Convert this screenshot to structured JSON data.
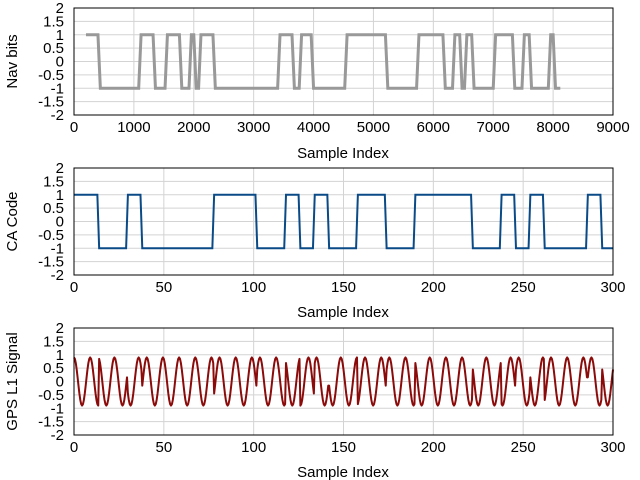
{
  "chart_data": [
    {
      "type": "line",
      "title": "",
      "xlabel": "Sample Index",
      "ylabel": "Nav bits",
      "xlim": [
        0,
        9000
      ],
      "ylim": [
        -2,
        2
      ],
      "xticks": [
        0,
        1000,
        2000,
        3000,
        4000,
        5000,
        6000,
        7000,
        8000,
        9000
      ],
      "xtick_labels": [
        "0",
        "1000",
        "2000",
        "3000",
        "4000",
        "5000",
        "6000",
        "7000",
        "8000",
        "9000"
      ],
      "yticks": [
        -2,
        -1.5,
        -1,
        -0.5,
        0,
        0.5,
        1,
        1.5,
        2
      ],
      "ytick_labels": [
        "-2",
        "-1.5",
        "-1",
        "-0.5",
        "0",
        "0.5",
        "1",
        "1.5",
        "2"
      ],
      "grid": true,
      "series": [
        {
          "color": "#999999",
          "bits": [
            1,
            1,
            1,
            1,
            1,
            1,
            -1,
            -1,
            -1,
            -1,
            -1,
            -1,
            -1,
            -1,
            -1,
            -1,
            -1,
            -1,
            -1,
            -1,
            -1,
            -1,
            -1,
            1,
            1,
            1,
            1,
            1,
            1,
            -1,
            -1,
            -1,
            -1,
            -1,
            1,
            1,
            1,
            1,
            1,
            1,
            -1,
            -1,
            -1,
            -1,
            1,
            1,
            -1,
            -1,
            1,
            1,
            1,
            1,
            1,
            1,
            -1,
            -1,
            -1,
            -1,
            -1,
            -1,
            -1,
            -1,
            -1,
            -1,
            -1,
            -1,
            -1,
            -1,
            -1,
            -1,
            -1,
            -1,
            -1,
            -1,
            -1,
            -1,
            -1,
            -1,
            -1,
            -1,
            -1,
            1,
            1,
            1,
            1,
            1,
            1,
            -1,
            -1,
            -1,
            1,
            1,
            1,
            1,
            1,
            -1,
            -1,
            -1,
            -1,
            -1,
            -1,
            -1,
            -1,
            -1,
            -1,
            -1,
            -1,
            -1,
            -1,
            1,
            1,
            1,
            1,
            1,
            1,
            1,
            1,
            1,
            1,
            1,
            1,
            1,
            1,
            1,
            1,
            1,
            -1,
            -1,
            -1,
            -1,
            -1,
            -1,
            -1,
            -1,
            -1,
            -1,
            -1,
            -1,
            -1,
            1,
            1,
            1,
            1,
            1,
            1,
            1,
            1,
            1,
            1,
            1,
            -1,
            -1,
            -1,
            -1,
            1,
            1,
            1,
            -1,
            -1,
            1,
            1,
            1,
            -1,
            -1,
            -1,
            -1,
            -1,
            -1,
            -1,
            -1,
            -1,
            1,
            1,
            1,
            1,
            1,
            1,
            1,
            1,
            -1,
            -1,
            -1,
            -1,
            1,
            1,
            1,
            -1,
            -1,
            -1,
            -1,
            -1,
            -1,
            -1,
            -1,
            1,
            1,
            -1,
            -1,
            -1
          ]
        }
      ]
    },
    {
      "type": "line",
      "title": "",
      "xlabel": "Sample Index",
      "ylabel": "CA Code",
      "xlim": [
        0,
        300
      ],
      "ylim": [
        -2,
        2
      ],
      "xticks": [
        0,
        50,
        100,
        150,
        200,
        250,
        300
      ],
      "xtick_labels": [
        "0",
        "50",
        "100",
        "150",
        "200",
        "250",
        "300"
      ],
      "yticks": [
        -2,
        -1.5,
        -1,
        -0.5,
        0,
        0.5,
        1,
        1.5,
        2
      ],
      "ytick_labels": [
        "-2",
        "-1.5",
        "-1",
        "-0.5",
        "0",
        "0.5",
        "1",
        "1.5",
        "2"
      ],
      "grid": true,
      "series": [
        {
          "color": "#0a4a87",
          "chips": [
            1,
            1,
            1,
            1,
            1,
            1,
            1,
            1,
            1,
            1,
            1,
            1,
            1,
            1,
            -1,
            -1,
            -1,
            -1,
            -1,
            -1,
            -1,
            -1,
            -1,
            -1,
            -1,
            -1,
            -1,
            -1,
            -1,
            -1,
            1,
            1,
            1,
            1,
            1,
            1,
            1,
            1,
            -1,
            -1,
            -1,
            -1,
            -1,
            -1,
            -1,
            -1,
            -1,
            -1,
            -1,
            -1,
            -1,
            -1,
            -1,
            -1,
            -1,
            -1,
            -1,
            -1,
            -1,
            -1,
            -1,
            -1,
            -1,
            -1,
            -1,
            -1,
            -1,
            -1,
            -1,
            -1,
            -1,
            -1,
            -1,
            -1,
            -1,
            -1,
            -1,
            -1,
            1,
            1,
            1,
            1,
            1,
            1,
            1,
            1,
            1,
            1,
            1,
            1,
            1,
            1,
            1,
            1,
            1,
            1,
            1,
            1,
            1,
            1,
            1,
            1,
            -1,
            -1,
            -1,
            -1,
            -1,
            -1,
            -1,
            -1,
            -1,
            -1,
            -1,
            -1,
            -1,
            -1,
            -1,
            -1,
            1,
            1,
            1,
            1,
            1,
            1,
            1,
            1,
            -1,
            -1,
            -1,
            -1,
            -1,
            -1,
            -1,
            -1,
            1,
            1,
            1,
            1,
            1,
            1,
            1,
            1,
            -1,
            -1,
            -1,
            -1,
            -1,
            -1,
            -1,
            -1,
            -1,
            -1,
            -1,
            -1,
            -1,
            -1,
            -1,
            -1,
            1,
            1,
            1,
            1,
            1,
            1,
            1,
            1,
            1,
            1,
            1,
            1,
            1,
            1,
            1,
            1,
            -1,
            -1,
            -1,
            -1,
            -1,
            -1,
            -1,
            -1,
            -1,
            -1,
            -1,
            -1,
            -1,
            -1,
            -1,
            -1,
            1,
            1,
            1,
            1,
            1,
            1,
            1,
            1,
            1,
            1,
            1,
            1,
            1,
            1,
            1,
            1,
            1,
            1,
            1,
            1,
            1,
            1,
            1,
            1,
            1,
            1,
            1,
            1,
            1,
            1,
            1,
            1,
            -1,
            -1,
            -1,
            -1,
            -1,
            -1,
            -1,
            -1,
            -1,
            -1,
            -1,
            -1,
            -1,
            -1,
            -1,
            -1,
            1,
            1,
            1,
            1,
            1,
            1,
            1,
            1,
            -1,
            -1,
            -1,
            -1,
            -1,
            -1,
            -1,
            -1,
            1,
            1,
            1,
            1,
            1,
            1,
            1,
            1,
            -1,
            -1,
            -1,
            -1,
            -1,
            -1,
            -1,
            -1,
            -1,
            -1,
            -1,
            -1,
            -1,
            -1,
            -1,
            -1,
            -1,
            -1,
            -1,
            -1,
            -1,
            -1,
            -1,
            -1,
            1,
            1,
            1,
            1,
            1,
            1,
            1,
            1,
            -1,
            -1,
            -1,
            -1,
            -1,
            -1,
            -1,
            -1,
            -1,
            -1,
            -1,
            -1,
            -1,
            -1,
            -1,
            -1
          ]
        }
      ]
    },
    {
      "type": "line",
      "title": "",
      "xlabel": "Sample Index",
      "ylabel": "GPS L1 Signal",
      "xlim": [
        0,
        300
      ],
      "ylim": [
        -2,
        2
      ],
      "xticks": [
        0,
        50,
        100,
        150,
        200,
        250,
        300
      ],
      "xtick_labels": [
        "0",
        "50",
        "100",
        "150",
        "200",
        "250",
        "300"
      ],
      "yticks": [
        -2,
        -1.5,
        -1,
        -0.5,
        0,
        0.5,
        1,
        1.5,
        2
      ],
      "ytick_labels": [
        "-2",
        "-1.5",
        "-1",
        "-0.5",
        "0",
        "0.5",
        "1",
        "1.5",
        "2"
      ],
      "grid": true,
      "series": [
        {
          "color": "#8b0a0a",
          "carrier_period": 9,
          "amplitude": 0.9
        }
      ]
    }
  ]
}
